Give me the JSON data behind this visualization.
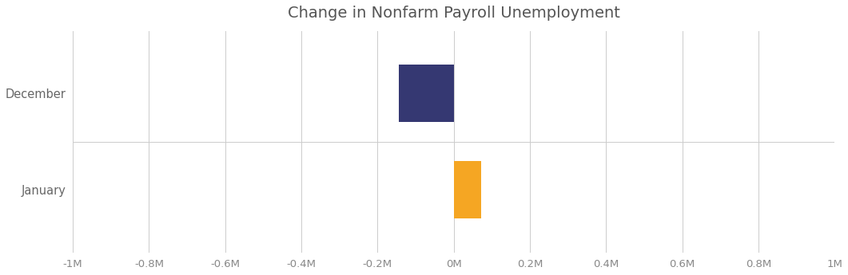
{
  "title": "Change in Nonfarm Payroll Unemployment",
  "categories": [
    "December",
    "January"
  ],
  "values": [
    -143000,
    73000
  ],
  "colors": [
    "#353872",
    "#f5a623"
  ],
  "xlim": [
    -1000000,
    1000000
  ],
  "xticks": [
    -1000000,
    -800000,
    -600000,
    -400000,
    -200000,
    0,
    200000,
    400000,
    600000,
    800000,
    1000000
  ],
  "xtick_labels": [
    "-1M",
    "-0.8M",
    "-0.6M",
    "-0.4M",
    "-0.2M",
    "0M",
    "0.2M",
    "0.4M",
    "0.6M",
    "0.8M",
    "1M"
  ],
  "title_color": "#555555",
  "title_fontsize": 14,
  "background_color": "#ffffff",
  "grid_color": "#cccccc",
  "bar_height": 0.6
}
